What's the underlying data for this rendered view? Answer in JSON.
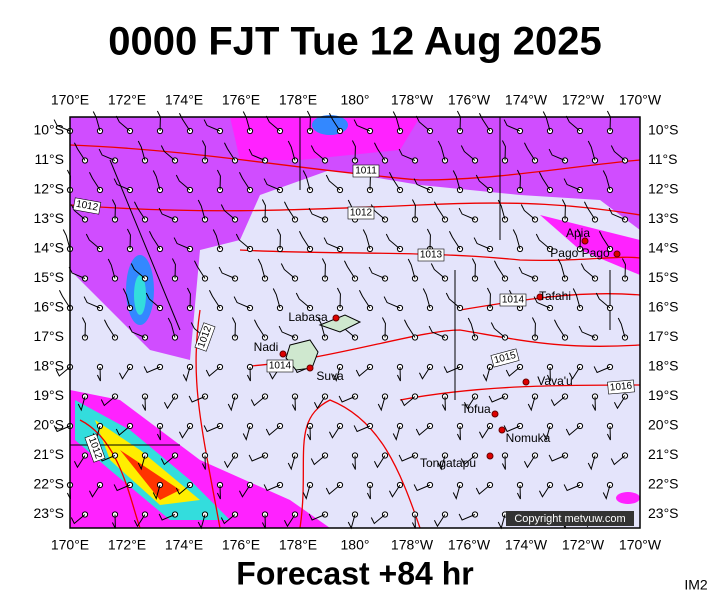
{
  "title": "0000 FJT Tue 12 Aug 2025",
  "footer": "Forecast +84 hr",
  "image_id": "IM2",
  "copyright": "Copyright metvuw.com",
  "lon_labels": [
    "170°E",
    "172°E",
    "174°E",
    "176°E",
    "178°E",
    "180°",
    "178°W",
    "176°W",
    "174°W",
    "172°W",
    "170°W"
  ],
  "lat_labels": [
    "10°S",
    "11°S",
    "12°S",
    "13°S",
    "14°S",
    "15°S",
    "16°S",
    "17°S",
    "18°S",
    "19°S",
    "20°S",
    "21°S",
    "22°S",
    "23°S"
  ],
  "places": [
    "Apia",
    "Pago Pago",
    "Tafahi",
    "Labasa",
    "Nadi",
    "Suva",
    "Vava'u",
    "Tofua",
    "Nomuka",
    "Tongatapu"
  ],
  "isobar_labels": [
    "1011",
    "1012",
    "1012",
    "1013",
    "1014",
    "1012",
    "1014",
    "1015",
    "1016",
    "1012"
  ]
}
